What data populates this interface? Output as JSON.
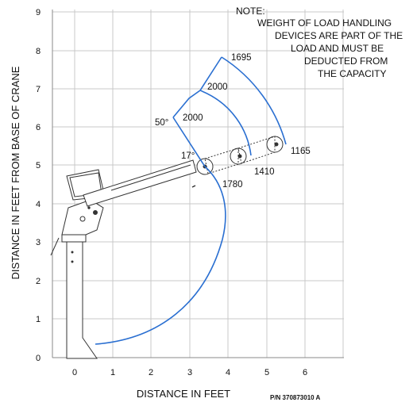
{
  "note": {
    "lines": [
      "NOTE:",
      "WEIGHT OF LOAD HANDLING",
      "DEVICES ARE PART OF THE",
      "LOAD AND MUST BE",
      "DEDUCTED FROM",
      "THE CAPACITY"
    ]
  },
  "axes": {
    "x_title": "DISTANCE IN FEET",
    "y_title": "DISTANCE IN FEET FROM BASE OF CRANE",
    "x_ticks": [
      "0",
      "1",
      "2",
      "3",
      "4",
      "5",
      "6"
    ],
    "y_ticks": [
      "0",
      "1",
      "2",
      "3",
      "4",
      "5",
      "6",
      "7",
      "8",
      "9"
    ]
  },
  "angles": {
    "max": "50°",
    "min": "17°"
  },
  "capacities": {
    "ext0_at_50": "2000",
    "ext1_at_50": "2000",
    "ext2_at_50": "1695",
    "ext0_at_17": "1780",
    "ext1_at_17": "1410",
    "ext2_at_17": "1165"
  },
  "part_number": "P/N 370873010 A",
  "colors": {
    "envelope": "#2a6fd1",
    "grid": "#c8c8c8",
    "ink": "#111111"
  }
}
